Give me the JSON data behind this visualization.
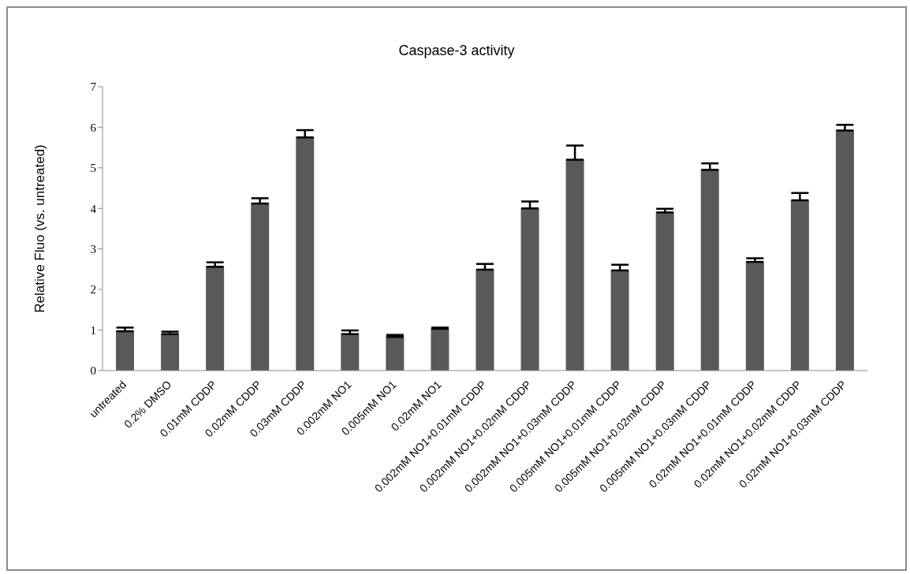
{
  "chart_data": {
    "type": "bar",
    "title": "Caspase-3 activity",
    "ylabel": "Relative Fluo (vs. untreated)",
    "categories": [
      "untreated",
      "0.2% DMSO",
      "0.01mM CDDP",
      "0.02mM CDDP",
      "0.03mM CDDP",
      "0.002mM NO1",
      "0.005mM NO1",
      "0.02mM NO1",
      "0.002mM NO1+0.01mM CDDP",
      "0.002mM NO1+0.02mM CDDP",
      "0.002mM NO1+0.03mM CDDP",
      "0.005mM NO1+0.01mM CDDP",
      "0.005mM NO1+0.02mM CDDP",
      "0.005mM NO1+0.03mM CDDP",
      "0.02mM NO1+0.01mM CDDP",
      "0.02mM NO1+0.02mM CDDP",
      "0.02mM NO1+0.03mM CDDP"
    ],
    "values": [
      0.97,
      0.9,
      2.56,
      4.12,
      5.75,
      0.9,
      0.83,
      1.03,
      2.49,
      4.0,
      5.2,
      2.47,
      3.9,
      4.95,
      2.68,
      4.2,
      5.92
    ],
    "errors": [
      [
        0.97,
        1.06
      ],
      [
        0.9,
        0.96
      ],
      [
        2.56,
        2.67
      ],
      [
        4.12,
        4.25
      ],
      [
        5.75,
        5.93
      ],
      [
        0.9,
        0.99
      ],
      [
        0.83,
        0.88
      ],
      [
        1.03,
        1.06
      ],
      [
        2.49,
        2.63
      ],
      [
        4.0,
        4.17
      ],
      [
        5.2,
        5.55
      ],
      [
        2.47,
        2.61
      ],
      [
        3.9,
        3.99
      ],
      [
        4.95,
        5.11
      ],
      [
        2.68,
        2.77
      ],
      [
        4.2,
        4.38
      ],
      [
        5.92,
        6.06
      ]
    ],
    "color": "#595959",
    "ylim": [
      0,
      7
    ],
    "yticks": [
      0,
      1,
      2,
      3,
      4,
      5,
      6,
      7
    ],
    "grid": false,
    "legend": false
  }
}
